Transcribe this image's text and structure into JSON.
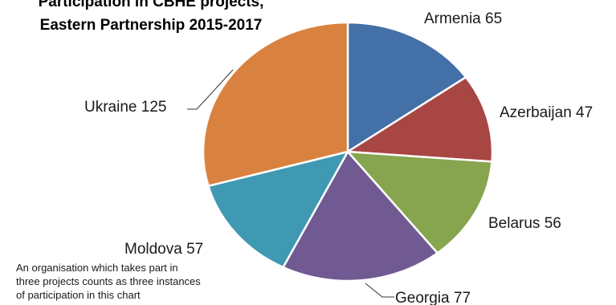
{
  "chart_data": {
    "type": "pie",
    "title_lines": [
      "Participation in CBHE projects,",
      "Eastern Partnership 2015-2017"
    ],
    "categories": [
      "Armenia",
      "Azerbaijan",
      "Belarus",
      "Georgia",
      "Moldova",
      "Ukraine"
    ],
    "values": [
      65,
      47,
      56,
      77,
      57,
      125
    ],
    "colors": [
      "#4470a8",
      "#a84643",
      "#87a44e",
      "#705a91",
      "#4099b2",
      "#d9823f"
    ],
    "labels": [
      "Armenia 65",
      "Azerbaijan 47",
      "Belarus 56",
      "Georgia 77",
      "Moldova 57",
      "Ukraine 125"
    ],
    "start_angle_deg": 0,
    "direction": "clockwise",
    "legend": "none",
    "footnote_lines": [
      "An organisation which takes part in",
      "three projects counts as three instances",
      "of participation in this chart"
    ]
  }
}
